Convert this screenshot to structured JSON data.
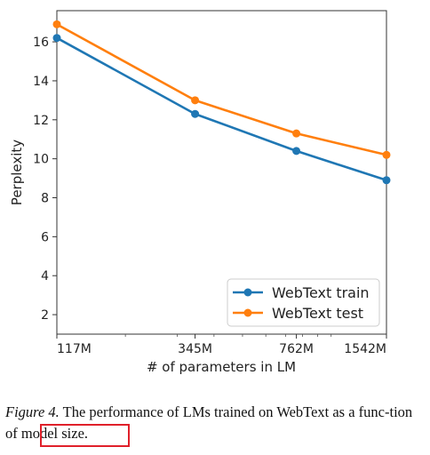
{
  "chart_data": {
    "type": "line",
    "categories": [
      "117M",
      "345M",
      "762M",
      "1542M"
    ],
    "x_scale": "log",
    "xlabel": "# of parameters in LM",
    "ylabel": "Perplexity",
    "ylim": [
      1,
      17.6
    ],
    "yticks": [
      2,
      4,
      6,
      8,
      10,
      12,
      14,
      16
    ],
    "grid": false,
    "legend_position": "lower-right",
    "series": [
      {
        "name": "WebText train",
        "color": "#1f77b4",
        "values": [
          16.2,
          12.3,
          10.4,
          8.9
        ]
      },
      {
        "name": "WebText test",
        "color": "#ff7f0e",
        "values": [
          16.9,
          13.0,
          11.3,
          10.2
        ]
      }
    ]
  },
  "caption": {
    "figure_label": "Figure 4.",
    "text_before": " The performance of LMs trained on WebText as a func-tion o",
    "highlighted": "f model size.",
    "highlight_color": "#e0202a"
  }
}
